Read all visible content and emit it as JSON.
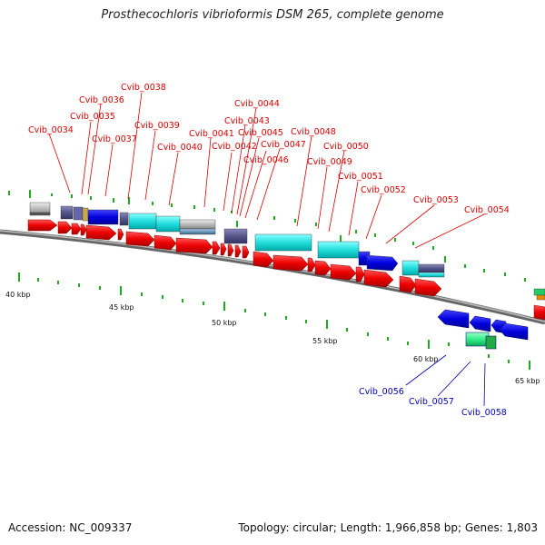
{
  "title": "Prosthecochloris vibrioformis DSM 265, complete genome",
  "footer": {
    "accession": "Accession: NC_009337",
    "summary": "Topology: circular; Length: 1,966,858 bp; Genes: 1,803"
  },
  "colors": {
    "forward_label": "#dd0000",
    "reverse_label": "#0000bb",
    "cds": "#ee0000",
    "backbone": "#888888",
    "tick": "#228822",
    "cyan": "#22dddd",
    "blue": "#0000dd",
    "gray": "#aaaaaa",
    "slate": "#555588",
    "green": "#33ee88"
  },
  "scale_labels": [
    "40 kbp",
    "45 kbp",
    "50 kbp",
    "55 kbp",
    "60 kbp",
    "65 kbp"
  ],
  "forward_gene_labels": [
    "Cvib_0034",
    "Cvib_0035",
    "Cvib_0036",
    "Cvib_0037",
    "Cvib_0038",
    "Cvib_0039",
    "Cvib_0040",
    "Cvib_0041",
    "Cvib_0042",
    "Cvib_0043",
    "Cvib_0044",
    "Cvib_0045",
    "Cvib_0046",
    "Cvib_0047",
    "Cvib_0048",
    "Cvib_0049",
    "Cvib_0050",
    "Cvib_0051",
    "Cvib_0052",
    "Cvib_0053",
    "Cvib_0054"
  ],
  "reverse_gene_labels": [
    "Cvib_0056",
    "Cvib_0057",
    "Cvib_0058"
  ]
}
